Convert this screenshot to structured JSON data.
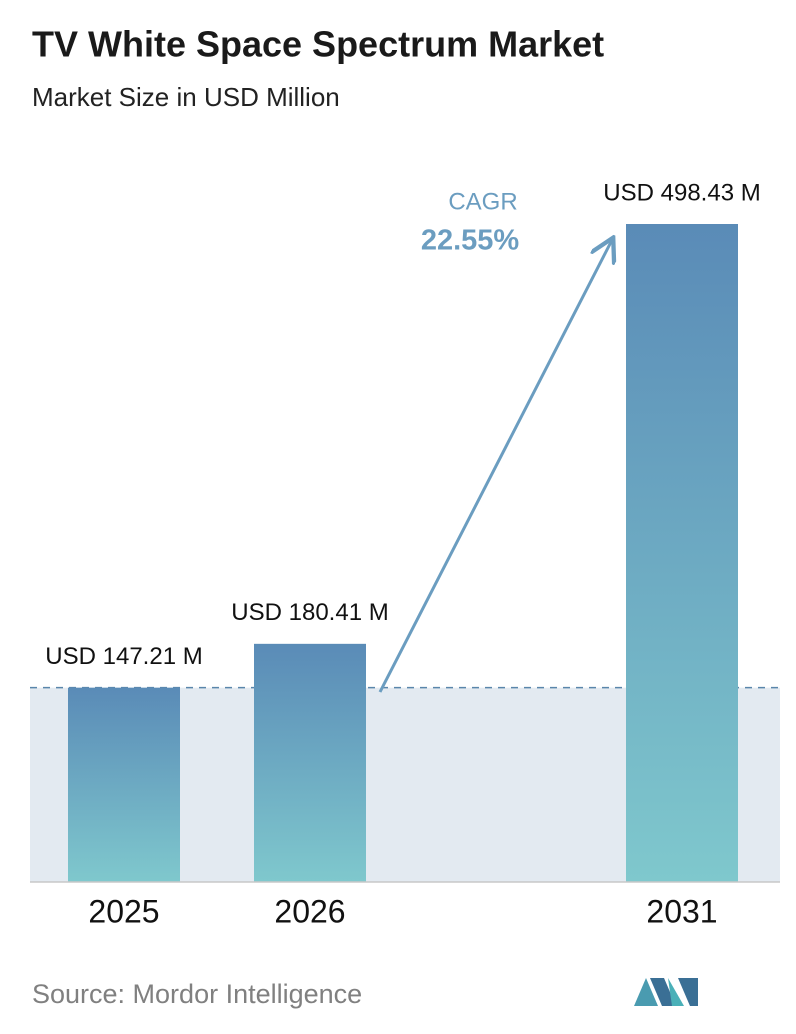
{
  "chart_data": {
    "type": "bar",
    "title": "TV White Space Spectrum Market",
    "subtitle": "Market Size in USD Million",
    "categories": [
      "2025",
      "2026",
      "2031"
    ],
    "values": [
      147.21,
      180.41,
      498.43
    ],
    "value_labels": [
      "USD 147.21 M",
      "USD 180.41 M",
      "USD 498.43 M"
    ],
    "gradient": [
      "#5a8bb7",
      "#7fc8cd"
    ],
    "annotation": {
      "label": "CAGR",
      "value": "22.55%",
      "color": "#6b9dc0"
    },
    "source": "Source:  Mordor Intelligence"
  }
}
